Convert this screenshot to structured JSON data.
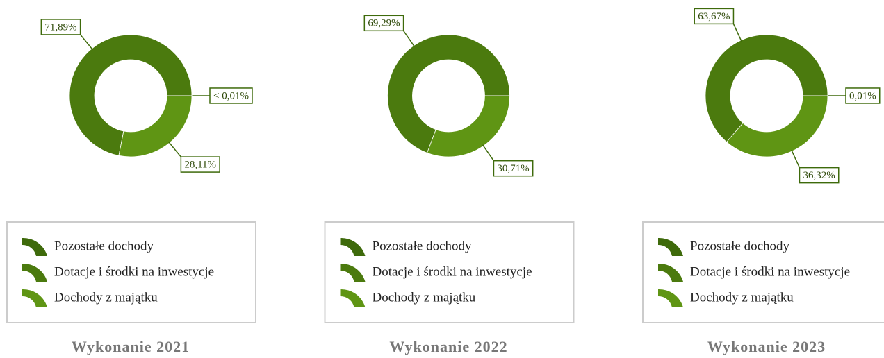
{
  "chart_data": [
    {
      "type": "pie",
      "title": "Wykonanie 2021",
      "categories": [
        "Pozostałe dochody",
        "Dotacje i środki na inwestycje",
        "Dochody z majątku"
      ],
      "values": [
        0.01,
        71.89,
        28.11
      ],
      "value_labels": [
        "< 0,01%",
        "71,89%",
        "28,11%"
      ],
      "colors": [
        "#3e6a0b",
        "#4b7a0e",
        "#5f9514"
      ]
    },
    {
      "type": "pie",
      "title": "Wykonanie 2022",
      "categories": [
        "Pozostałe dochody",
        "Dotacje i środki na inwestycje",
        "Dochody z majątku"
      ],
      "values": [
        0,
        69.29,
        30.71
      ],
      "value_labels": [
        null,
        "69,29%",
        "30,71%"
      ],
      "colors": [
        "#3e6a0b",
        "#4b7a0e",
        "#5f9514"
      ]
    },
    {
      "type": "pie",
      "title": "Wykonanie 2023",
      "categories": [
        "Pozostałe dochody",
        "Dotacje i środki na inwestycje",
        "Dochody z majątku"
      ],
      "values": [
        0.01,
        63.67,
        36.32
      ],
      "value_labels": [
        "0,01%",
        "63,67%",
        "36,32%"
      ],
      "colors": [
        "#3e6a0b",
        "#4b7a0e",
        "#5f9514"
      ]
    }
  ]
}
